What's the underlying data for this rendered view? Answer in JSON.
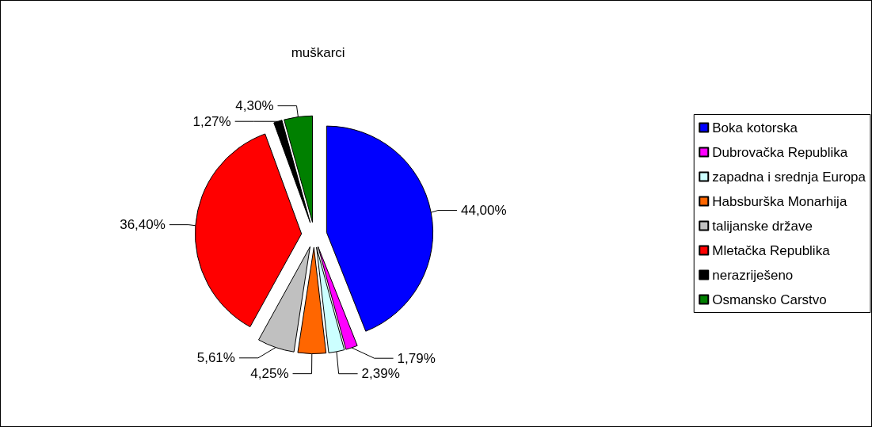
{
  "chart_data": {
    "type": "pie",
    "title": "muškarci",
    "categories": [
      "Boka kotorska",
      "Dubrovačka Republika",
      "zapadna i srednja Europa",
      "Habsburška Monarhija",
      "talijanske države",
      "Mletačka Republika",
      "nerazriješeno",
      "Osmansko Carstvo"
    ],
    "values": [
      44.0,
      1.79,
      2.39,
      4.25,
      5.61,
      36.4,
      1.27,
      4.3
    ],
    "value_labels": [
      "44,00%",
      "1,79%",
      "2,39%",
      "4,25%",
      "5,61%",
      "36,40%",
      "1,27%",
      "4,30%"
    ],
    "colors": [
      "#0000ff",
      "#ff00ff",
      "#ccffff",
      "#ff6600",
      "#c0c0c0",
      "#ff0000",
      "#000000",
      "#008000"
    ],
    "legend": "right"
  }
}
